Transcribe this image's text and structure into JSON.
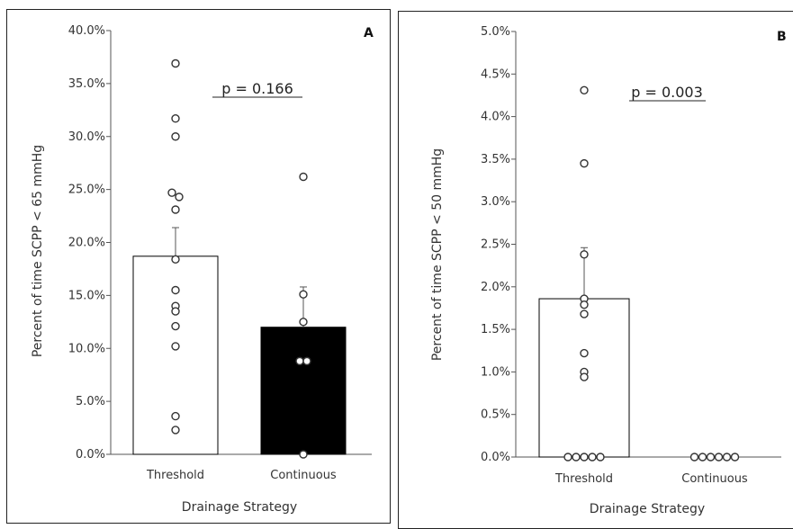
{
  "chart_data": [
    {
      "type": "bar",
      "panel_label": "A",
      "categories": [
        "Threshold",
        "Continuous"
      ],
      "values": [
        18.7,
        12.0
      ],
      "error_bars": [
        2.7,
        3.8
      ],
      "bar_colors": [
        "#ffffff",
        "#000000"
      ],
      "points": [
        [
          36.9,
          31.7,
          30.0,
          24.7,
          24.3,
          23.1,
          18.4,
          15.5,
          14.0,
          13.5,
          12.1,
          10.2,
          3.6,
          2.3
        ],
        [
          26.2,
          15.1,
          12.5,
          8.8,
          8.8,
          0.0
        ]
      ],
      "annotation": "p = 0.166",
      "xlabel": "Drainage Strategy",
      "ylabel": "Percent of time SCPP < 65 mmHg",
      "ylim": [
        0,
        40
      ],
      "yticks": [
        "0.0%",
        "5.0%",
        "10.0%",
        "15.0%",
        "20.0%",
        "25.0%",
        "30.0%",
        "35.0%",
        "40.0%"
      ],
      "grid": false
    },
    {
      "type": "bar",
      "panel_label": "B",
      "categories": [
        "Threshold",
        "Continuous"
      ],
      "values": [
        1.86,
        0.0
      ],
      "error_bars": [
        0.6,
        0.0
      ],
      "bar_colors": [
        "#ffffff",
        "#000000"
      ],
      "points": [
        [
          4.31,
          3.45,
          2.38,
          1.86,
          1.79,
          1.68,
          1.22,
          1.0,
          0.94,
          0.0,
          0.0,
          0.0,
          0.0,
          0.0
        ],
        [
          0.0,
          0.0,
          0.0,
          0.0,
          0.0,
          0.0
        ]
      ],
      "annotation": "p = 0.003",
      "xlabel": "Drainage Strategy",
      "ylabel": "Percent of time SCPP < 50 mmHg",
      "ylim": [
        0,
        5
      ],
      "yticks": [
        "0.0%",
        "0.5%",
        "1.0%",
        "1.5%",
        "2.0%",
        "2.5%",
        "3.0%",
        "3.5%",
        "4.0%",
        "4.5%",
        "5.0%"
      ],
      "grid": false
    }
  ]
}
